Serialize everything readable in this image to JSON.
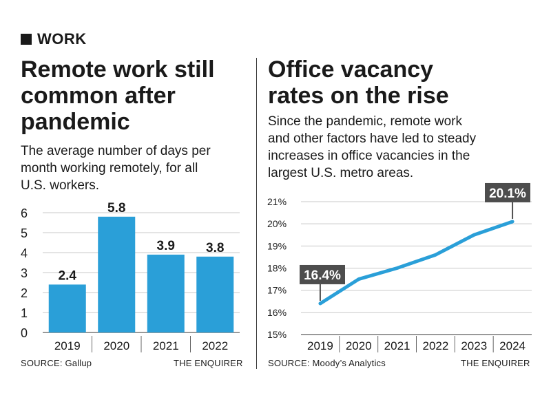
{
  "section": {
    "label": "WORK"
  },
  "left": {
    "title_lines": [
      "Remote work still",
      "common after",
      "pandemic"
    ],
    "subtitle_lines": [
      "The average number of days per",
      "month working remotely, for all",
      "U.S. workers."
    ],
    "source": "SOURCE: Gallup",
    "credit": "THE ENQUIRER"
  },
  "right": {
    "title_lines": [
      "Office vacancy",
      "rates on the rise"
    ],
    "subtitle_lines": [
      "Since the pandemic, remote work",
      "and other factors have led to steady",
      "increases in office vacancies in the",
      "largest U.S. metro areas."
    ],
    "source": "SOURCE: Moody’s Analytics",
    "credit": "THE ENQUIRER"
  },
  "chart_data": [
    {
      "type": "bar",
      "categories": [
        "2019",
        "2020",
        "2021",
        "2022"
      ],
      "values": [
        2.4,
        5.8,
        3.9,
        3.8
      ],
      "value_labels": [
        "2.4",
        "5.8",
        "3.9",
        "3.8"
      ],
      "yticks": [
        "0",
        "1",
        "2",
        "3",
        "4",
        "5",
        "6"
      ],
      "ylim": [
        0,
        6
      ],
      "grid": true,
      "color": "#2a9fd8"
    },
    {
      "type": "line",
      "x": [
        "2019",
        "2020",
        "2021",
        "2022",
        "2023",
        "2024"
      ],
      "values": [
        16.4,
        17.5,
        18.0,
        18.6,
        19.5,
        20.1
      ],
      "yticks": [
        "15%",
        "16%",
        "17%",
        "18%",
        "19%",
        "20%",
        "21%"
      ],
      "ylim": [
        15,
        21
      ],
      "grid": true,
      "color": "#2a9fd8",
      "annotations": [
        {
          "x": "2019",
          "y": 16.4,
          "label": "16.4%"
        },
        {
          "x": "2024",
          "y": 20.1,
          "label": "20.1%"
        }
      ]
    }
  ]
}
